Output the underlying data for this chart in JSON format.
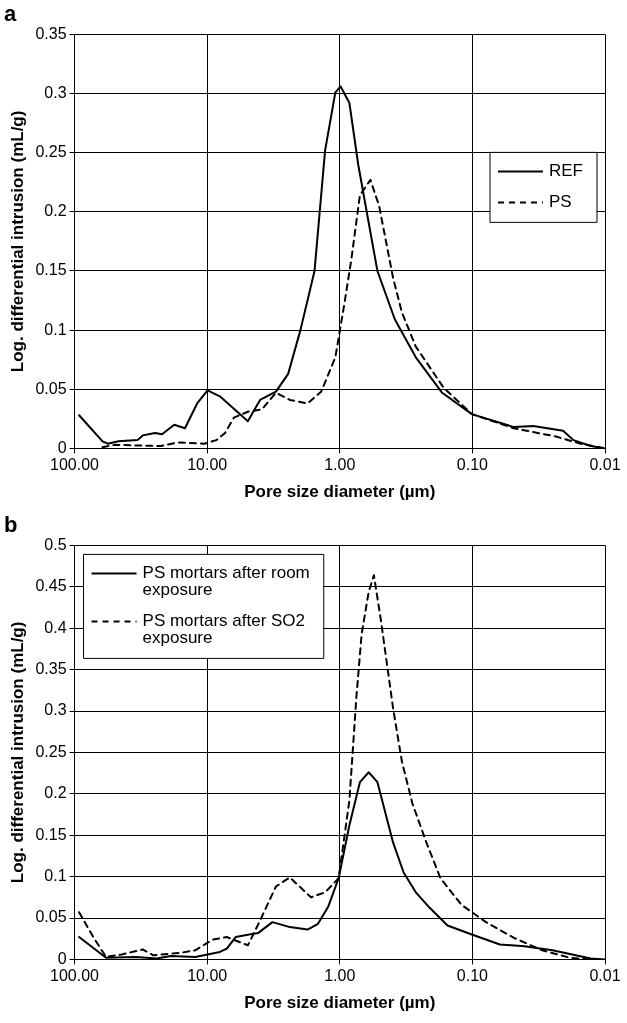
{
  "chart_data": [
    {
      "type": "line",
      "title": "a",
      "xlabel": "Pore size diameter (µm)",
      "ylabel": "Log. differential intrusion (mL/g)",
      "log": "x",
      "grid": true,
      "legend": "right",
      "marker": "none",
      "xlim": [
        100,
        0.01
      ],
      "xticks": [
        {
          "value": 100,
          "label": "100.00"
        },
        {
          "value": 10,
          "label": "10.00"
        },
        {
          "value": 1,
          "label": "1.00"
        },
        {
          "value": 0.1,
          "label": "0.10"
        },
        0.01
      ],
      "ylim": [
        0,
        0.35
      ],
      "yticks": [
        0,
        0.05,
        0.1,
        0.15,
        0.2,
        0.25,
        0.3,
        0.35
      ],
      "series": [
        {
          "name": "REF",
          "color": "#000000",
          "line_style": "solid",
          "x": [
            92.4,
            61.5,
            56.1,
            46.8,
            33.5,
            30.6,
            24.7,
            21.9,
            17.7,
            14.7,
            11.9,
            9.93,
            8.02,
            4.93,
            3.99,
            3.03,
            2.45,
            1.98,
            1.55,
            1.29,
            1.08,
            0.985,
            0.846,
            0.726,
            0.624,
            0.52,
            0.384,
            0.267,
            0.169,
            0.101,
            0.0486,
            0.0348,
            0.0207,
            0.0173,
            0.0128,
            0.01
          ],
          "values": [
            0.028,
            0.006,
            0.004,
            0.006,
            0.007,
            0.011,
            0.013,
            0.012,
            0.02,
            0.017,
            0.038,
            0.049,
            0.044,
            0.023,
            0.041,
            0.048,
            0.063,
            0.1,
            0.15,
            0.252,
            0.301,
            0.306,
            0.292,
            0.24,
            0.199,
            0.15,
            0.109,
            0.077,
            0.047,
            0.029,
            0.018,
            0.019,
            0.015,
            0.007,
            0.002,
            0
          ]
        },
        {
          "name": "PS",
          "color": "#000000",
          "line_style": "dashed",
          "x": [
            61.5,
            49.7,
            22.5,
            16.6,
            10.5,
            8.53,
            7.33,
            6.29,
            4.93,
            3.87,
            3.03,
            2.38,
            1.75,
            1.38,
            1.08,
            0.927,
            0.82,
            0.705,
            0.587,
            0.505,
            0.396,
            0.34,
            0.267,
            0.164,
            0.101,
            0.0486,
            0.0234,
            0.0153,
            0.01
          ],
          "values": [
            0.001,
            0.003,
            0.002,
            0.005,
            0.004,
            0.007,
            0.013,
            0.026,
            0.031,
            0.033,
            0.047,
            0.041,
            0.038,
            0.048,
            0.077,
            0.121,
            0.159,
            0.214,
            0.227,
            0.205,
            0.144,
            0.115,
            0.086,
            0.051,
            0.029,
            0.017,
            0.01,
            0.004,
            0
          ]
        }
      ]
    },
    {
      "type": "line",
      "title": "b",
      "xlabel": "Pore size diameter (µm)",
      "ylabel": "Log. differential intrusion (mL/g)",
      "log": "x",
      "grid": true,
      "legend": "top left",
      "marker": "none",
      "xlim": [
        100,
        0.01
      ],
      "xticks": [
        {
          "value": 100,
          "label": "100.00"
        },
        {
          "value": 10,
          "label": "10.00"
        },
        {
          "value": 1,
          "label": "1.00"
        },
        {
          "value": 0.1,
          "label": "0.10"
        },
        0.01
      ],
      "ylim": [
        0,
        0.5
      ],
      "yticks": [
        0,
        0.05,
        0.1,
        0.15,
        0.2,
        0.25,
        0.3,
        0.35,
        0.4,
        0.45,
        0.5
      ],
      "series": [
        {
          "name": "PS mortars after room exposure",
          "color": "#000000",
          "line_style": "solid",
          "x": [
            92.4,
            57.9,
            34.5,
            24,
            18.8,
            12.3,
            8.02,
            7.11,
            6.1,
            4.11,
            3.22,
            2.38,
            1.75,
            1.46,
            1.22,
            1.02,
            0.846,
            0.705,
            0.605,
            0.52,
            0.396,
            0.33,
            0.267,
            0.209,
            0.154,
            0.101,
            0.062,
            0.0405,
            0.0249,
            0.0128,
            0.01
          ],
          "values": [
            0.027,
            0.002,
            0.003,
            0.001,
            0.004,
            0.003,
            0.009,
            0.013,
            0.027,
            0.032,
            0.045,
            0.039,
            0.036,
            0.043,
            0.064,
            0.098,
            0.162,
            0.214,
            0.226,
            0.214,
            0.141,
            0.105,
            0.081,
            0.062,
            0.041,
            0.03,
            0.018,
            0.016,
            0.011,
            0.001,
            0
          ]
        },
        {
          "name": "PS mortars after SO2 exposure",
          "color": "#000000",
          "line_style": "dashed",
          "x": [
            92.4,
            71.6,
            57.9,
            44,
            30.6,
            25.5,
            15.7,
            12.3,
            9.06,
            7.11,
            4.93,
            3.99,
            3.03,
            2.38,
            1.65,
            1.29,
            1.02,
            0.846,
            0.75,
            0.684,
            0.605,
            0.553,
            0.49,
            0.396,
            0.34,
            0.283,
            0.222,
            0.174,
            0.121,
            0.079,
            0.0486,
            0.0298,
            0.0184,
            0.0128
          ],
          "values": [
            0.057,
            0.026,
            0.003,
            0.006,
            0.012,
            0.005,
            0.008,
            0.011,
            0.024,
            0.027,
            0.017,
            0.047,
            0.088,
            0.099,
            0.075,
            0.081,
            0.098,
            0.192,
            0.316,
            0.393,
            0.444,
            0.464,
            0.41,
            0.303,
            0.239,
            0.188,
            0.141,
            0.098,
            0.066,
            0.045,
            0.026,
            0.011,
            0.002,
            0
          ]
        }
      ]
    }
  ]
}
